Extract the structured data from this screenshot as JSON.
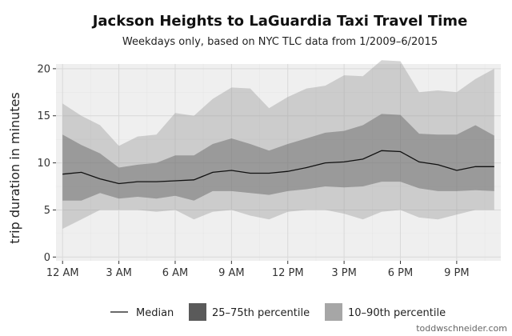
{
  "chart_data": {
    "type": "area",
    "title": "Jackson Heights to LaGuardia Taxi Travel Time",
    "subtitle": "Weekdays only, based on NYC TLC data from 1/2009–6/2015",
    "ylabel": "trip duration in minutes",
    "xlabel": "",
    "ylim": [
      0,
      20.5
    ],
    "yticks": [
      0,
      5,
      10,
      15,
      20
    ],
    "xticks": [
      {
        "hour": 0,
        "label": "12 AM"
      },
      {
        "hour": 3,
        "label": "3 AM"
      },
      {
        "hour": 6,
        "label": "6 AM"
      },
      {
        "hour": 9,
        "label": "9 AM"
      },
      {
        "hour": 12,
        "label": "12 PM"
      },
      {
        "hour": 15,
        "label": "3 PM"
      },
      {
        "hour": 18,
        "label": "6 PM"
      },
      {
        "hour": 21,
        "label": "9 PM"
      }
    ],
    "x": [
      0,
      1,
      2,
      3,
      4,
      5,
      6,
      7,
      8,
      9,
      10,
      11,
      12,
      13,
      14,
      15,
      16,
      17,
      18,
      19,
      20,
      21,
      22,
      23
    ],
    "series": [
      {
        "name": "Median",
        "kind": "line",
        "color": "#111111",
        "values": [
          8.8,
          9.0,
          8.3,
          7.8,
          8.0,
          8.0,
          8.1,
          8.2,
          9.0,
          9.2,
          8.9,
          8.9,
          9.1,
          9.5,
          10.0,
          10.1,
          10.4,
          11.3,
          11.2,
          10.1,
          9.8,
          9.2,
          9.6,
          9.6
        ]
      },
      {
        "name": "25–75th percentile",
        "kind": "band",
        "color": "#555555",
        "lower": [
          6.0,
          6.0,
          6.8,
          6.2,
          6.4,
          6.2,
          6.5,
          6.0,
          7.0,
          7.0,
          6.8,
          6.6,
          7.0,
          7.2,
          7.5,
          7.4,
          7.5,
          8.0,
          8.0,
          7.3,
          7.0,
          7.0,
          7.1,
          7.0
        ],
        "upper": [
          13.0,
          11.9,
          11.0,
          9.5,
          9.8,
          10.0,
          10.8,
          10.8,
          12.0,
          12.6,
          12.0,
          11.3,
          12.0,
          12.6,
          13.2,
          13.4,
          14.0,
          15.2,
          15.1,
          13.1,
          13.0,
          13.0,
          14.0,
          12.9
        ]
      },
      {
        "name": "10–90th percentile",
        "kind": "band",
        "color": "#9a9a9a",
        "lower": [
          3.0,
          4.0,
          5.0,
          5.0,
          5.0,
          4.8,
          5.0,
          4.0,
          4.8,
          5.0,
          4.4,
          4.0,
          4.8,
          5.0,
          5.0,
          4.6,
          4.0,
          4.8,
          5.0,
          4.2,
          4.0,
          4.5,
          5.0,
          5.0
        ],
        "upper": [
          16.3,
          15.0,
          14.0,
          11.8,
          12.8,
          13.0,
          15.3,
          15.0,
          16.8,
          18.0,
          17.9,
          15.8,
          17.0,
          17.9,
          18.2,
          19.3,
          19.2,
          20.9,
          20.8,
          17.5,
          17.7,
          17.5,
          18.9,
          20.0
        ]
      }
    ],
    "legend_position": "bottom",
    "grid": true,
    "colors": {
      "panel_bg": "#efefef",
      "grid_major": "#d9d9d9",
      "grid_minor": "#e6e6e6"
    }
  },
  "credit": "toddwschneider.com"
}
